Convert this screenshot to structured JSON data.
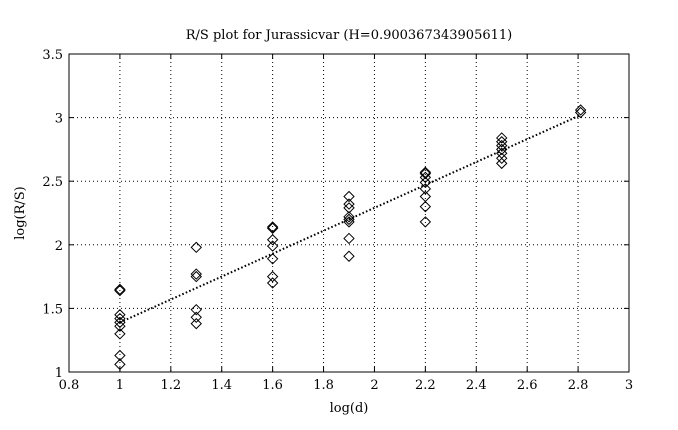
{
  "chart_data": {
    "type": "scatter",
    "title": "R/S plot for Jurassicvar (H=0.900367343905611)",
    "xlabel": "log(d)",
    "ylabel": "log(R/S)",
    "xlim": [
      0.8,
      3
    ],
    "ylim": [
      1,
      3.5
    ],
    "xticks": [
      "0.8",
      "1",
      "1.2",
      "1.4",
      "1.6",
      "1.8",
      "2",
      "2.2",
      "2.4",
      "2.6",
      "2.8",
      "3"
    ],
    "yticks": [
      "1",
      "1.5",
      "2",
      "2.5",
      "3",
      "3.5"
    ],
    "grid": true,
    "marker": "diamond",
    "series": [
      {
        "points": [
          [
            1.0,
            1.06
          ],
          [
            1.0,
            1.13
          ],
          [
            1.0,
            1.3
          ],
          [
            1.0,
            1.36
          ],
          [
            1.0,
            1.39
          ],
          [
            1.0,
            1.42
          ],
          [
            1.0,
            1.45
          ],
          [
            1.0,
            1.64
          ],
          [
            1.0,
            1.65
          ],
          [
            1.3,
            1.38
          ],
          [
            1.3,
            1.43
          ],
          [
            1.3,
            1.49
          ],
          [
            1.3,
            1.75
          ],
          [
            1.3,
            1.77
          ],
          [
            1.3,
            1.98
          ],
          [
            1.6,
            1.7
          ],
          [
            1.6,
            1.75
          ],
          [
            1.6,
            1.89
          ],
          [
            1.6,
            1.99
          ],
          [
            1.6,
            2.04
          ],
          [
            1.6,
            2.13
          ],
          [
            1.6,
            2.14
          ],
          [
            1.9,
            1.91
          ],
          [
            1.9,
            2.05
          ],
          [
            1.9,
            2.18
          ],
          [
            1.9,
            2.2
          ],
          [
            1.9,
            2.22
          ],
          [
            1.9,
            2.29
          ],
          [
            1.9,
            2.32
          ],
          [
            1.9,
            2.38
          ],
          [
            2.2,
            2.18
          ],
          [
            2.2,
            2.3
          ],
          [
            2.2,
            2.38
          ],
          [
            2.2,
            2.44
          ],
          [
            2.2,
            2.49
          ],
          [
            2.2,
            2.53
          ],
          [
            2.2,
            2.56
          ],
          [
            2.2,
            2.57
          ],
          [
            2.5,
            2.64
          ],
          [
            2.5,
            2.68
          ],
          [
            2.5,
            2.72
          ],
          [
            2.5,
            2.75
          ],
          [
            2.5,
            2.78
          ],
          [
            2.5,
            2.81
          ],
          [
            2.5,
            2.84
          ],
          [
            2.81,
            3.04
          ],
          [
            2.81,
            3.06
          ]
        ]
      }
    ],
    "fit_line": {
      "x": [
        1.0,
        2.81
      ],
      "y": [
        1.39,
        3.02
      ],
      "style": "dotted"
    }
  }
}
